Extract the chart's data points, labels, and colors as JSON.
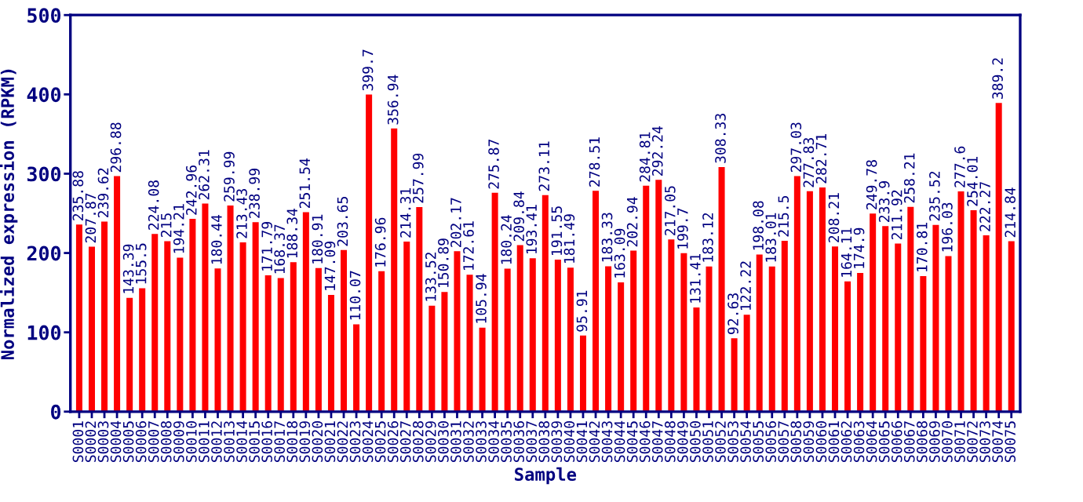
{
  "chart_data": {
    "type": "bar",
    "xlabel": "Sample",
    "ylabel": "Normalized expression (RPKM)",
    "categories": [
      "S0001",
      "S0002",
      "S0003",
      "S0004",
      "S0005",
      "S0006",
      "S0007",
      "S0008",
      "S0009",
      "S0010",
      "S0011",
      "S0012",
      "S0013",
      "S0014",
      "S0015",
      "S0016",
      "S0017",
      "S0018",
      "S0019",
      "S0020",
      "S0021",
      "S0022",
      "S0023",
      "S0024",
      "S0025",
      "S0026",
      "S0027",
      "S0028",
      "S0029",
      "S0030",
      "S0031",
      "S0032",
      "S0033",
      "S0034",
      "S0035",
      "S0036",
      "S0037",
      "S0038",
      "S0039",
      "S0040",
      "S0041",
      "S0042",
      "S0043",
      "S0044",
      "S0045",
      "S0046",
      "S0047",
      "S0048",
      "S0049",
      "S0050",
      "S0051",
      "S0052",
      "S0053",
      "S0054",
      "S0055",
      "S0056",
      "S0057",
      "S0058",
      "S0059",
      "S0060",
      "S0061",
      "S0062",
      "S0063",
      "S0064",
      "S0065",
      "S0066",
      "S0067",
      "S0068",
      "S0069",
      "S0070",
      "S0071",
      "S0072",
      "S0073",
      "S0074",
      "S0075"
    ],
    "values": [
      235.88,
      207.87,
      239.62,
      296.88,
      143.39,
      155.5,
      224.08,
      215,
      194.21,
      242.96,
      262.31,
      180.44,
      259.99,
      213.43,
      238.99,
      171.79,
      168.37,
      188.34,
      251.54,
      180.91,
      147.09,
      203.65,
      110.07,
      399.7,
      176.96,
      356.94,
      214.31,
      257.99,
      133.52,
      150.89,
      202.17,
      172.61,
      105.94,
      275.87,
      180.24,
      209.84,
      193.41,
      273.11,
      191.55,
      181.49,
      95.91,
      278.51,
      183.33,
      163.09,
      202.94,
      284.81,
      292.24,
      217.05,
      199.7,
      131.41,
      183.12,
      308.33,
      92.63,
      122.22,
      198.08,
      183.01,
      215.5,
      297.03,
      277.83,
      282.71,
      208.21,
      164.11,
      174.9,
      249.78,
      233.9,
      211.92,
      258.21,
      170.81,
      235.52,
      196.03,
      277.6,
      254.01,
      222.27,
      389.2,
      214.84
    ],
    "color": "#ff0000",
    "data_labels": true,
    "ylim": [
      0,
      500
    ],
    "yticks": [
      0,
      100,
      200,
      300,
      400,
      500
    ],
    "grid": false,
    "legend": false
  }
}
